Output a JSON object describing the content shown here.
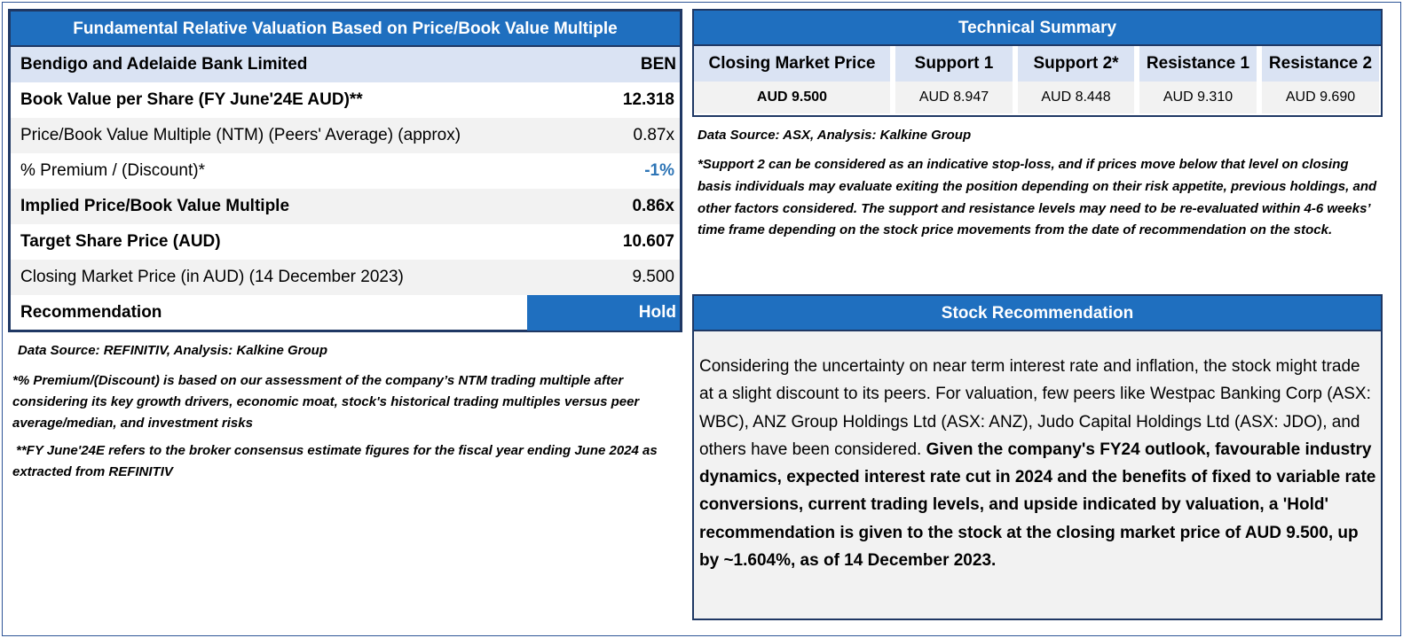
{
  "valuation": {
    "title": "Fundamental Relative Valuation Based on Price/Book Value Multiple",
    "company_name": "Bendigo and Adelaide Bank Limited",
    "ticker": "BEN",
    "rows": [
      {
        "label": "Book Value per Share (FY June'24E AUD)**",
        "value": "12.318"
      },
      {
        "label": "Price/Book Value Multiple (NTM)  (Peers' Average) (approx)",
        "value": "0.87x"
      },
      {
        "label": "% Premium / (Discount)*",
        "value": "-1%"
      },
      {
        "label": "Implied Price/Book Value Multiple",
        "value": "0.86x"
      },
      {
        "label": "Target Share Price (AUD)",
        "value": "10.607"
      },
      {
        "label": "Closing Market Price (in AUD) (14 December 2023)",
        "value": "9.500"
      }
    ],
    "recommendation_label": "Recommendation",
    "recommendation_value": "Hold",
    "source": "Data Source: REFINITIV, Analysis: Kalkine Group",
    "note1": "*% Premium/(Discount) is based on our assessment of the company’s NTM trading multiple after considering its key growth drivers, economic moat, stock's historical trading multiples versus peer average/median, and investment risks",
    "note2": "**FY June'24E refers to the broker consensus estimate figures for the fiscal year ending June 2024  as extracted from REFINITIV"
  },
  "technical": {
    "title": "Technical Summary",
    "columns": [
      {
        "header": "Closing Market Price",
        "value": "AUD 9.500"
      },
      {
        "header": "Support 1",
        "value": "AUD 8.947"
      },
      {
        "header": "Support 2*",
        "value": "AUD 8.448"
      },
      {
        "header": "Resistance 1",
        "value": "AUD 9.310"
      },
      {
        "header": "Resistance 2",
        "value": "AUD 9.690"
      }
    ],
    "source": "Data Source: ASX, Analysis: Kalkine Group",
    "note": "*Support 2 can be considered as an indicative stop-loss, and if prices move below that level on closing basis individuals may evaluate exiting the position depending on their risk appetite, previous holdings, and other factors considered. The support and resistance levels may need to be re-evaluated within 4-6 weeks’ time frame depending on the stock price movements from the date of recommendation on the stock."
  },
  "recommendation": {
    "title": "Stock Recommendation",
    "text_normal": "Considering the uncertainty on near term interest rate and inflation, the stock might trade at a slight discount to its peers. For valuation, few peers like Westpac Banking Corp (ASX: WBC), ANZ Group Holdings Ltd (ASX: ANZ), Judo Capital Holdings Ltd (ASX: JDO), and others have been considered. ",
    "text_bold": "Given the company's FY24 outlook, favourable industry dynamics, expected interest rate cut in 2024 and the benefits of fixed to variable rate conversions, current trading levels, and upside indicated by valuation, a 'Hold' recommendation is given to the stock at the closing market price of AUD 9.500, up by ~1.604%,  as of 14 December 2023."
  }
}
